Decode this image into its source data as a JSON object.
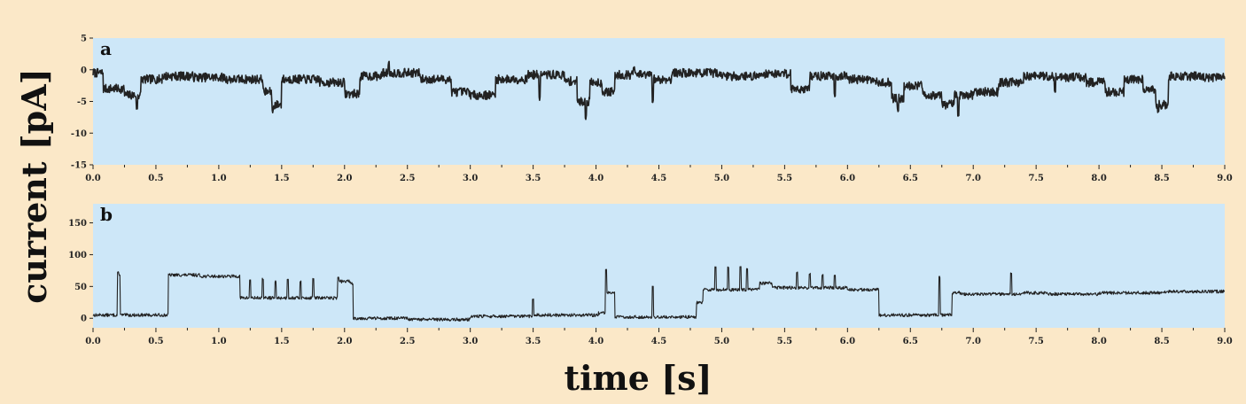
{
  "chart_data": {
    "ylabel": "current [pA]",
    "xlabel": "time [s]",
    "colors": {
      "page_background": "#fbe8c8",
      "plot_background": "#cde7f8",
      "trace": "#222222"
    },
    "panels": [
      {
        "label": "a",
        "type": "line",
        "xlim": [
          0,
          9
        ],
        "ylim": [
          -15,
          5
        ],
        "xticks": [
          0.0,
          0.5,
          1.0,
          1.5,
          2.0,
          2.5,
          3.0,
          3.5,
          4.0,
          4.5,
          5.0,
          5.5,
          6.0,
          6.5,
          7.0,
          7.5,
          8.0,
          8.5,
          9.0
        ],
        "xtick_labels": [
          "0.0",
          "0.5",
          "1.0",
          "1.5",
          "2.0",
          "2.5",
          "3.0",
          "3.5",
          "4.0",
          "4.5",
          "5.0",
          "5.5",
          "6.0",
          "6.5",
          "7.0",
          "7.5",
          "8.0",
          "8.5",
          "9.0"
        ],
        "yticks": [
          -15,
          -10,
          -5,
          0,
          5
        ],
        "ytick_labels": [
          "-15",
          "-10",
          "-5",
          "0",
          "5"
        ],
        "noise": 0.7,
        "levels": [
          [
            0.0,
            -0.5
          ],
          [
            0.08,
            -3.0
          ],
          [
            0.25,
            -4.0
          ],
          [
            0.38,
            -1.5
          ],
          [
            0.55,
            -1.0
          ],
          [
            0.8,
            -1.2
          ],
          [
            1.05,
            -1.5
          ],
          [
            1.35,
            -3.5
          ],
          [
            1.42,
            -5.5
          ],
          [
            1.5,
            -1.5
          ],
          [
            1.8,
            -2.0
          ],
          [
            2.0,
            -3.8
          ],
          [
            2.12,
            -1.0
          ],
          [
            2.3,
            -0.5
          ],
          [
            2.6,
            -1.5
          ],
          [
            2.85,
            -3.5
          ],
          [
            3.0,
            -4.0
          ],
          [
            3.2,
            -1.5
          ],
          [
            3.45,
            -0.8
          ],
          [
            3.75,
            -1.8
          ],
          [
            3.85,
            -5.0
          ],
          [
            3.95,
            -2.0
          ],
          [
            4.05,
            -3.5
          ],
          [
            4.15,
            -0.8
          ],
          [
            4.45,
            -1.5
          ],
          [
            4.6,
            -0.5
          ],
          [
            5.0,
            -1.0
          ],
          [
            5.3,
            -0.6
          ],
          [
            5.55,
            -3.0
          ],
          [
            5.7,
            -1.0
          ],
          [
            6.0,
            -1.5
          ],
          [
            6.2,
            -2.0
          ],
          [
            6.35,
            -4.5
          ],
          [
            6.45,
            -2.5
          ],
          [
            6.6,
            -4.0
          ],
          [
            6.75,
            -5.5
          ],
          [
            6.85,
            -4.0
          ],
          [
            7.0,
            -3.5
          ],
          [
            7.2,
            -2.0
          ],
          [
            7.4,
            -1.0
          ],
          [
            7.7,
            -1.2
          ],
          [
            7.9,
            -2.0
          ],
          [
            8.05,
            -3.5
          ],
          [
            8.2,
            -1.5
          ],
          [
            8.35,
            -3.0
          ],
          [
            8.45,
            -5.5
          ],
          [
            8.55,
            -1.0
          ],
          [
            8.8,
            -1.2
          ],
          [
            9.0,
            -1.2
          ]
        ],
        "spikes": [
          [
            0.35,
            -6.0
          ],
          [
            1.43,
            -6.5
          ],
          [
            3.92,
            -7.5
          ],
          [
            4.45,
            -5.0
          ],
          [
            6.4,
            -6.5
          ],
          [
            6.88,
            -7.0
          ],
          [
            8.47,
            -6.5
          ],
          [
            2.35,
            1.0
          ],
          [
            4.3,
            0.5
          ],
          [
            3.55,
            -4.5
          ],
          [
            5.9,
            -4.0
          ],
          [
            7.65,
            -3.5
          ]
        ],
        "seed": 7
      },
      {
        "label": "b",
        "type": "line",
        "xlim": [
          0,
          9
        ],
        "ylim": [
          -15,
          180
        ],
        "xticks": [
          0.0,
          0.5,
          1.0,
          1.5,
          2.0,
          2.5,
          3.0,
          3.5,
          4.0,
          4.5,
          5.0,
          5.5,
          6.0,
          6.5,
          7.0,
          7.5,
          8.0,
          8.5,
          9.0
        ],
        "xtick_labels": [
          "0.0",
          "0.5",
          "1.0",
          "1.5",
          "2.0",
          "2.5",
          "3.0",
          "3.5",
          "4.0",
          "4.5",
          "5.0",
          "5.5",
          "6.0",
          "6.5",
          "7.0",
          "7.5",
          "8.0",
          "8.5",
          "9.0"
        ],
        "yticks": [
          0,
          50,
          100,
          150
        ],
        "ytick_labels": [
          "0",
          "50",
          "100",
          "150"
        ],
        "noise": 2.5,
        "levels": [
          [
            0.0,
            5
          ],
          [
            0.6,
            68
          ],
          [
            0.85,
            66
          ],
          [
            1.17,
            32
          ],
          [
            1.95,
            58
          ],
          [
            2.05,
            55
          ],
          [
            2.07,
            0
          ],
          [
            2.5,
            -2
          ],
          [
            3.0,
            3
          ],
          [
            3.5,
            5
          ],
          [
            4.02,
            8
          ],
          [
            4.08,
            40
          ],
          [
            4.15,
            2
          ],
          [
            4.8,
            25
          ],
          [
            4.85,
            45
          ],
          [
            5.3,
            55
          ],
          [
            5.4,
            48
          ],
          [
            6.0,
            45
          ],
          [
            6.25,
            5
          ],
          [
            6.83,
            40
          ],
          [
            6.9,
            38
          ],
          [
            7.4,
            40
          ],
          [
            7.6,
            38
          ],
          [
            8.0,
            40
          ],
          [
            8.5,
            42
          ],
          [
            9.0,
            42
          ]
        ],
        "spikes": [
          [
            0.2,
            72
          ],
          [
            0.21,
            68
          ],
          [
            4.08,
            77
          ],
          [
            4.45,
            50
          ],
          [
            3.5,
            30
          ],
          [
            6.73,
            65
          ],
          [
            7.3,
            70
          ],
          [
            4.95,
            80
          ],
          [
            5.05,
            80
          ],
          [
            5.15,
            80
          ],
          [
            5.2,
            78
          ],
          [
            5.6,
            72
          ],
          [
            5.7,
            70
          ],
          [
            5.8,
            68
          ],
          [
            5.9,
            68
          ],
          [
            1.95,
            65
          ],
          [
            1.25,
            60
          ],
          [
            1.35,
            62
          ],
          [
            1.45,
            58
          ],
          [
            1.55,
            62
          ],
          [
            1.65,
            58
          ],
          [
            1.75,
            62
          ]
        ],
        "seed": 13
      }
    ]
  }
}
